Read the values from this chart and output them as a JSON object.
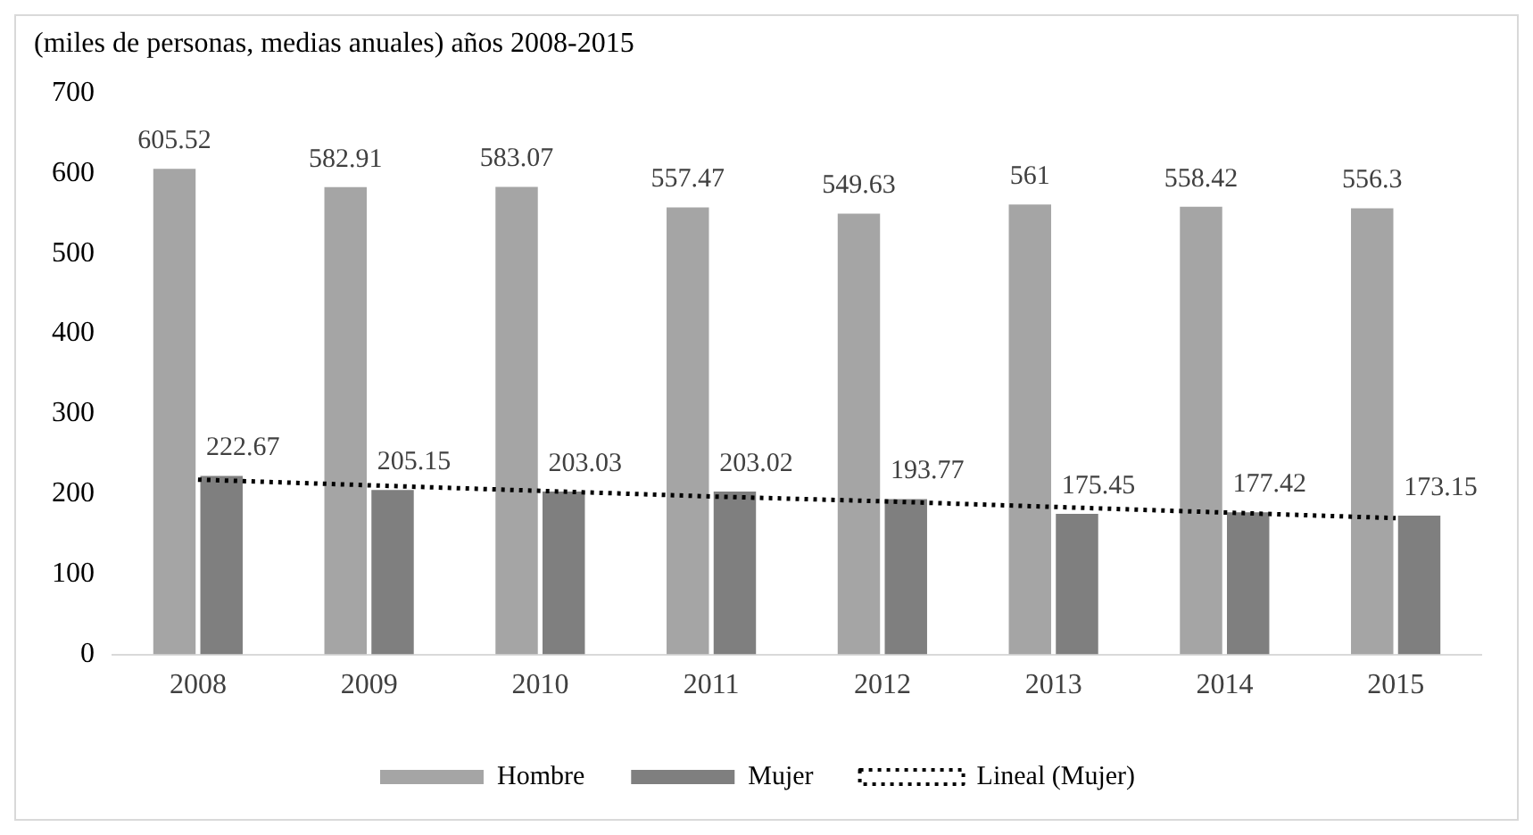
{
  "chart_data": {
    "type": "bar",
    "title": "(miles de personas, medias anuales) años 2008-2015",
    "categories": [
      "2008",
      "2009",
      "2010",
      "2011",
      "2012",
      "2013",
      "2014",
      "2015"
    ],
    "series": [
      {
        "name": "Hombre",
        "color": "#a5a5a5",
        "values": [
          605.52,
          582.91,
          583.07,
          557.47,
          549.63,
          561,
          558.42,
          556.3
        ],
        "value_labels": [
          "605.52",
          "582.91",
          "583.07",
          "557.47",
          "549.63",
          "561",
          "558.42",
          "556.3"
        ]
      },
      {
        "name": "Mujer",
        "color": "#7f7f7f",
        "values": [
          222.67,
          205.15,
          203.03,
          203.02,
          193.77,
          175.45,
          177.42,
          173.15
        ],
        "value_labels": [
          "222.67",
          "205.15",
          "203.03",
          "203.02",
          "193.77",
          "175.45",
          "177.42",
          "173.15"
        ]
      },
      {
        "name": "Lineal (Mujer)",
        "type": "line",
        "color": "#000000",
        "line_style": "dotted",
        "values": [
          218,
          211,
          204,
          197,
          191,
          184,
          177,
          170
        ]
      }
    ],
    "ylim": [
      0,
      700
    ],
    "yticks": [
      0,
      100,
      200,
      300,
      400,
      500,
      600,
      700
    ],
    "grid": false,
    "legend": "bottom"
  }
}
